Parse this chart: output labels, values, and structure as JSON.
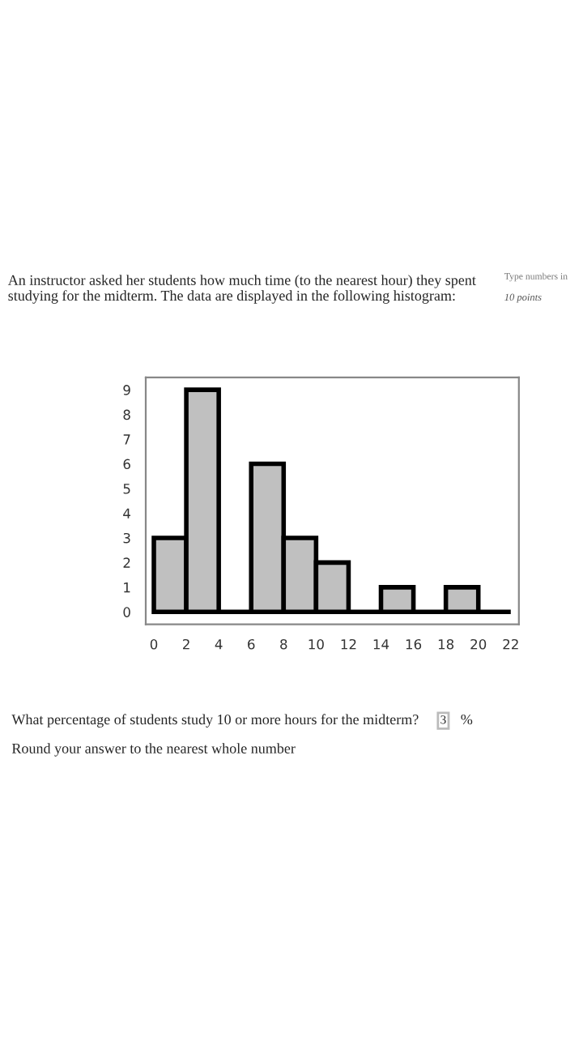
{
  "chart_data": {
    "type": "histogram",
    "title": "An instructor asked her students how much time (to the nearest hour) they spent studying for the midterm. The data are displayed in the following histogram:",
    "annotations": [
      "Type numbers in",
      "10 points",
      "What percentage of students study 10 or more hours for the midterm?",
      "3",
      "%",
      "Round your answer to the nearest whole number"
    ],
    "bins": [
      0,
      2,
      4,
      6,
      8,
      10,
      12,
      14,
      16,
      18,
      20,
      22
    ],
    "values": [
      3,
      9,
      0,
      6,
      3,
      2,
      0,
      1,
      0,
      1,
      0
    ],
    "colors": [
      "#c0c0c0",
      "#c0c0c0",
      "#000000",
      "#c0c0c0",
      "#c0c0c0",
      "#c0c0c0",
      "#000000",
      "#c0c0c0",
      "#000000",
      "#c0c0c0",
      "#000000"
    ],
    "xlim": [
      -0.5,
      22.5
    ],
    "ylim": [
      -0.5,
      9.5
    ],
    "xticks": [
      0,
      2,
      4,
      6,
      8,
      10,
      12,
      14,
      16,
      18,
      20,
      22
    ],
    "yticks": [
      0,
      1,
      2,
      3,
      4,
      5,
      6,
      7,
      8,
      9
    ],
    "grid": false
  }
}
